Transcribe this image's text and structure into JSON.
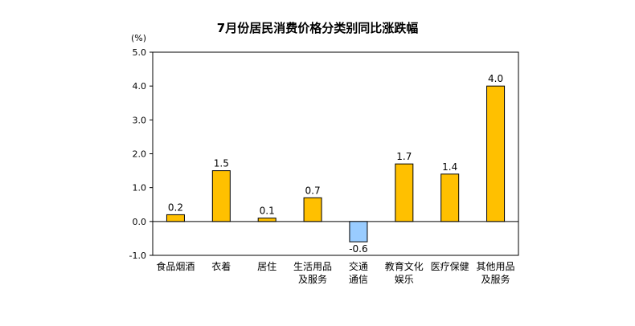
{
  "chart_data": {
    "type": "bar",
    "title": "7月份居民消费价格分类别同比涨跌幅",
    "unit": "(%)",
    "xlabel": "",
    "ylabel": "",
    "ylim": [
      -1.0,
      5.0
    ],
    "yticks": [
      "5.0",
      "4.0",
      "3.0",
      "2.0",
      "1.0",
      "0.0",
      "-1.0"
    ],
    "grid": false,
    "categories": [
      [
        "食品烟酒"
      ],
      [
        "衣着"
      ],
      [
        "居住"
      ],
      [
        "生活用品",
        "及服务"
      ],
      [
        "交通",
        "通信"
      ],
      [
        "教育文化",
        "娱乐"
      ],
      [
        "医疗保健"
      ],
      [
        "其他用品",
        "及服务"
      ]
    ],
    "values": [
      0.2,
      1.5,
      0.1,
      0.7,
      -0.6,
      1.7,
      1.4,
      4.0
    ],
    "data_labels": [
      "0.2",
      "1.5",
      "0.1",
      "0.7",
      "-0.6",
      "1.7",
      "1.4",
      "4.0"
    ],
    "colors": {
      "positive": "#FFC000",
      "negative": "#99CCFF",
      "bar_stroke": "#000000",
      "axis": "#000000"
    }
  }
}
